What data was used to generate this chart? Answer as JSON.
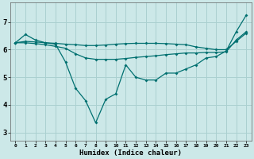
{
  "xlabel": "Humidex (Indice chaleur)",
  "bg_color": "#cce8e8",
  "line_color": "#007070",
  "grid_color": "#aad0d0",
  "xlim": [
    -0.5,
    23.5
  ],
  "ylim": [
    2.7,
    7.7
  ],
  "xticks": [
    0,
    1,
    2,
    3,
    4,
    5,
    6,
    7,
    8,
    9,
    10,
    11,
    12,
    13,
    14,
    15,
    16,
    17,
    18,
    19,
    20,
    21,
    22,
    23
  ],
  "yticks": [
    3,
    4,
    5,
    6,
    7
  ],
  "line1_x": [
    0,
    1,
    2,
    3,
    4,
    5,
    6,
    7,
    8,
    9,
    10,
    11,
    12,
    13,
    14,
    15,
    16,
    17,
    18,
    19,
    20,
    21,
    22,
    23
  ],
  "line1_y": [
    6.25,
    6.55,
    6.35,
    6.25,
    6.2,
    5.55,
    4.6,
    4.15,
    3.35,
    4.2,
    4.4,
    5.45,
    5.0,
    4.9,
    4.9,
    5.15,
    5.15,
    5.3,
    5.45,
    5.7,
    5.75,
    5.95,
    6.65,
    7.25
  ],
  "line2_x": [
    0,
    1,
    2,
    3,
    4,
    5,
    6,
    7,
    8,
    9,
    10,
    11,
    12,
    13,
    14,
    15,
    16,
    17,
    18,
    19,
    20,
    21,
    22,
    23
  ],
  "line2_y": [
    6.25,
    6.3,
    6.28,
    6.25,
    6.23,
    6.2,
    6.18,
    6.15,
    6.15,
    6.17,
    6.2,
    6.22,
    6.23,
    6.23,
    6.23,
    6.22,
    6.2,
    6.18,
    6.1,
    6.05,
    6.0,
    6.0,
    6.3,
    6.6
  ],
  "line3_x": [
    0,
    1,
    2,
    3,
    4,
    5,
    6,
    7,
    8,
    9,
    10,
    11,
    12,
    13,
    14,
    15,
    16,
    17,
    18,
    19,
    20,
    21,
    22,
    23
  ],
  "line3_y": [
    6.25,
    6.25,
    6.22,
    6.18,
    6.12,
    6.05,
    5.85,
    5.7,
    5.65,
    5.65,
    5.65,
    5.68,
    5.72,
    5.75,
    5.78,
    5.82,
    5.85,
    5.88,
    5.88,
    5.9,
    5.9,
    5.92,
    6.35,
    6.65
  ]
}
